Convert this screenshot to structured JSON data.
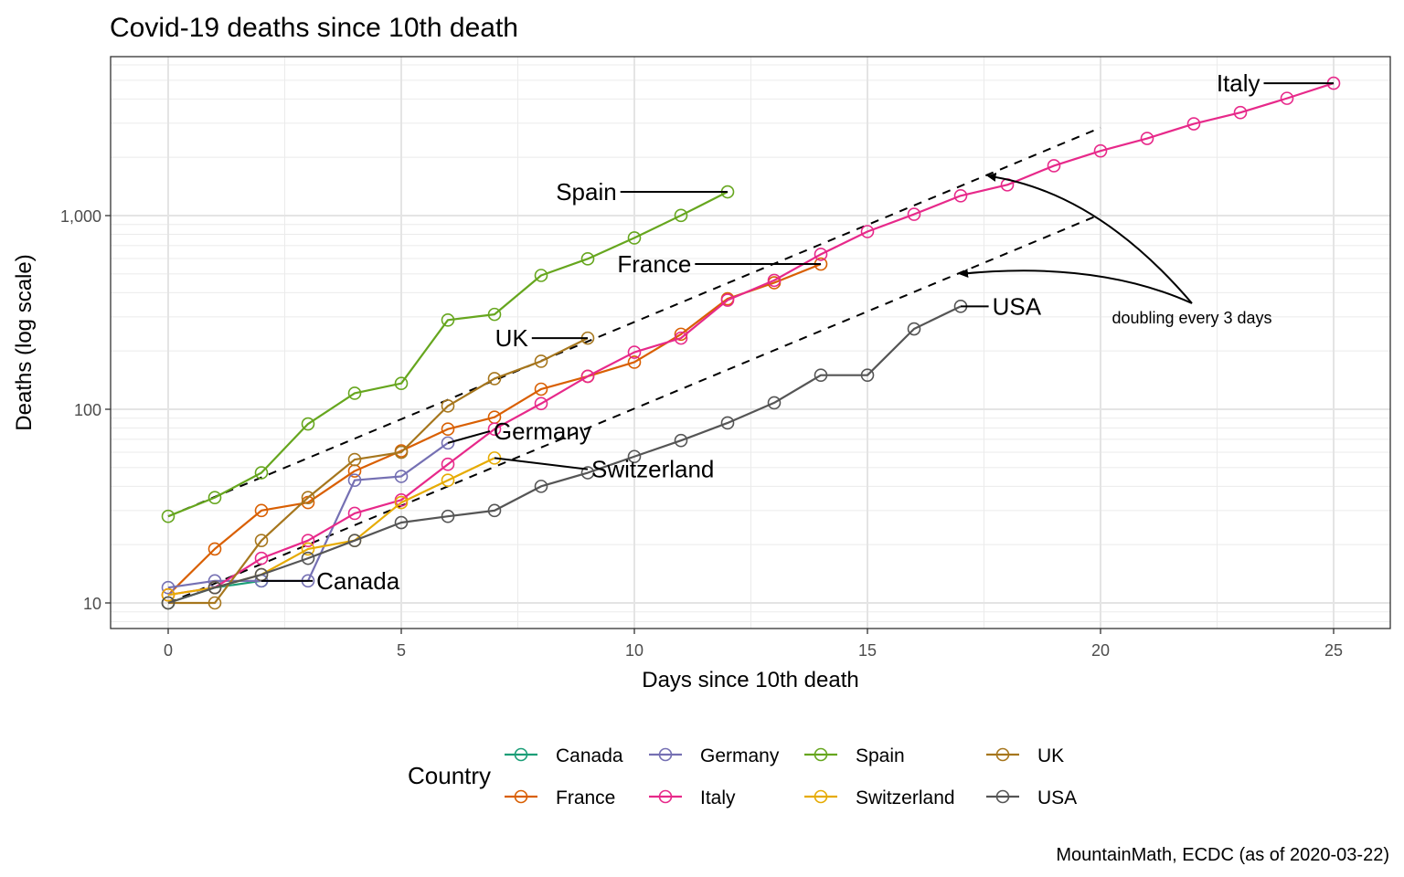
{
  "chart_data": {
    "type": "line",
    "title": "Covid-19 deaths since 10th death",
    "xlabel": "Days since 10th death",
    "ylabel": "Deaths (log scale)",
    "y_scale": "log10",
    "xlim": [
      -1.2,
      26.3
    ],
    "ylim": [
      7.5,
      7000
    ],
    "x_ticks": [
      0,
      5,
      10,
      15,
      20,
      25
    ],
    "x_tick_labels": [
      "0",
      "5",
      "10",
      "15",
      "20",
      "25"
    ],
    "y_ticks": [
      10,
      100,
      1000
    ],
    "y_tick_labels": [
      "10",
      "100",
      "1,000"
    ],
    "grid": true,
    "legend": {
      "title": "Country",
      "placement": "bottom",
      "entries": [
        "Canada",
        "France",
        "Germany",
        "Italy",
        "Spain",
        "Switzerland",
        "UK",
        "USA"
      ]
    },
    "caption": "MountainMath, ECDC (as of 2020-03-22)",
    "series": [
      {
        "name": "Canada",
        "color": "#1B9E77",
        "label": "Canada",
        "x": [
          0,
          1,
          2
        ],
        "values": [
          10,
          12,
          13
        ]
      },
      {
        "name": "France",
        "color": "#D95F02",
        "label": "France",
        "x": [
          0,
          1,
          2,
          3,
          4,
          5,
          6,
          7,
          8,
          9,
          10,
          11,
          12,
          13,
          14
        ],
        "values": [
          11,
          19,
          30,
          33,
          48,
          61,
          79,
          91,
          127,
          148,
          175,
          244,
          372,
          450,
          562
        ]
      },
      {
        "name": "Germany",
        "color": "#7570B3",
        "label": "Germany",
        "x": [
          0,
          1,
          2,
          3,
          4,
          5,
          6
        ],
        "values": [
          12,
          13,
          13,
          13,
          43,
          45,
          67
        ]
      },
      {
        "name": "Italy",
        "color": "#E7298A",
        "label": "Italy",
        "x": [
          0,
          1,
          2,
          3,
          4,
          5,
          6,
          7,
          8,
          9,
          10,
          11,
          12,
          13,
          14,
          15,
          16,
          17,
          18,
          19,
          20,
          21,
          22,
          23,
          24,
          25
        ],
        "values": [
          11,
          12,
          17,
          21,
          29,
          34,
          52,
          79,
          107,
          148,
          197,
          233,
          366,
          463,
          631,
          827,
          1016,
          1266,
          1441,
          1809,
          2158,
          2503,
          2978,
          3405,
          4032,
          4825
        ]
      },
      {
        "name": "Spain",
        "color": "#66A61E",
        "label": "Spain",
        "x": [
          0,
          1,
          2,
          3,
          4,
          5,
          6,
          7,
          8,
          9,
          10,
          11,
          12
        ],
        "values": [
          28,
          35,
          47,
          84,
          121,
          136,
          289,
          309,
          491,
          598,
          767,
          1002,
          1326
        ]
      },
      {
        "name": "Switzerland",
        "color": "#E6AB02",
        "label": "Switzerland",
        "x": [
          0,
          1,
          2,
          3,
          4,
          5,
          6,
          7
        ],
        "values": [
          11,
          12,
          14,
          19,
          21,
          33,
          43,
          56
        ]
      },
      {
        "name": "UK",
        "color": "#A6761D",
        "label": "UK",
        "x": [
          0,
          1,
          2,
          3,
          4,
          5,
          6,
          7,
          8,
          9
        ],
        "values": [
          10,
          10,
          21,
          35,
          55,
          60,
          104,
          144,
          177,
          233
        ]
      },
      {
        "name": "USA",
        "color": "#555555",
        "label": "USA",
        "x": [
          0,
          1,
          2,
          3,
          4,
          5,
          6,
          7,
          8,
          9,
          10,
          11,
          12,
          13,
          14,
          15,
          16,
          17
        ],
        "values": [
          10,
          12,
          14,
          17,
          21,
          26,
          28,
          30,
          40,
          47,
          57,
          69,
          85,
          108,
          150,
          150,
          260,
          340
        ]
      }
    ],
    "reference_lines": [
      {
        "name": "doubling-3-days-upper",
        "style": "dashed",
        "x": [
          0,
          20
        ],
        "values": [
          28,
          2844
        ]
      },
      {
        "name": "doubling-3-days-lower",
        "style": "dashed",
        "x": [
          0,
          20
        ],
        "values": [
          10,
          1016
        ]
      }
    ],
    "annotations": [
      {
        "text": "doubling every 3 days",
        "x": 22,
        "y": 300,
        "arrows_to": [
          {
            "x": 17.6,
            "y": 1600
          },
          {
            "x": 17.0,
            "y": 500
          }
        ]
      }
    ],
    "series_labels": [
      {
        "series": "Italy",
        "x": 23.5,
        "y": 4825
      },
      {
        "series": "Spain",
        "x": 9.7,
        "y": 1326
      },
      {
        "series": "France",
        "x": 11.3,
        "y": 562
      },
      {
        "series": "UK",
        "x": 7.8,
        "y": 233
      },
      {
        "series": "Germany",
        "x": 6.9,
        "y": 77
      },
      {
        "series": "Switzerland",
        "x": 9.0,
        "y": 49
      },
      {
        "series": "Canada",
        "x": 3.1,
        "y": 13
      },
      {
        "series": "USA",
        "x": 17.6,
        "y": 340
      }
    ]
  }
}
